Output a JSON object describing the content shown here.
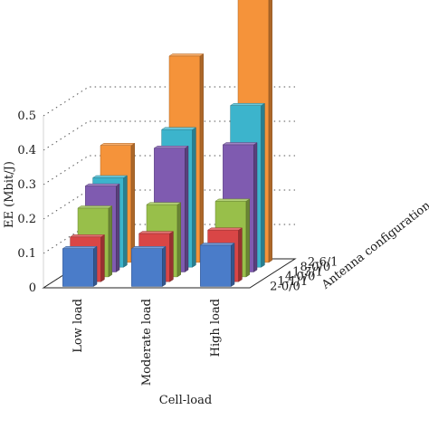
{
  "chart_data": {
    "type": "bar3d",
    "xlabel": "Cell-load",
    "ylabel": "EE (Mbit/J)",
    "zlabel": "Antenna configuration",
    "ylim": [
      0,
      0.5
    ],
    "yticks": [
      "0",
      "0.1",
      "0.2",
      "0.3",
      "0.4",
      "0.5"
    ],
    "grid": true,
    "categories": [
      "Low load",
      "Moderate load",
      "High load"
    ],
    "series": [
      {
        "name": "2-0/0",
        "color": "#4a7cc9",
        "values": [
          0.11,
          0.11,
          0.12
        ]
      },
      {
        "name": "1-1/1",
        "color": "#d94646",
        "values": [
          0.13,
          0.14,
          0.15
        ]
      },
      {
        "name": "4-0/0",
        "color": "#98bf4a",
        "values": [
          0.2,
          0.21,
          0.22
        ]
      },
      {
        "name": "1-3/1",
        "color": "#7f5bb0",
        "values": [
          0.25,
          0.36,
          0.37
        ]
      },
      {
        "name": "8-0/0",
        "color": "#3cb4cc",
        "values": [
          0.26,
          0.4,
          0.47
        ]
      },
      {
        "name": "2-6/1",
        "color": "#f5933a",
        "values": [
          0.34,
          0.6,
          0.85
        ]
      }
    ]
  }
}
